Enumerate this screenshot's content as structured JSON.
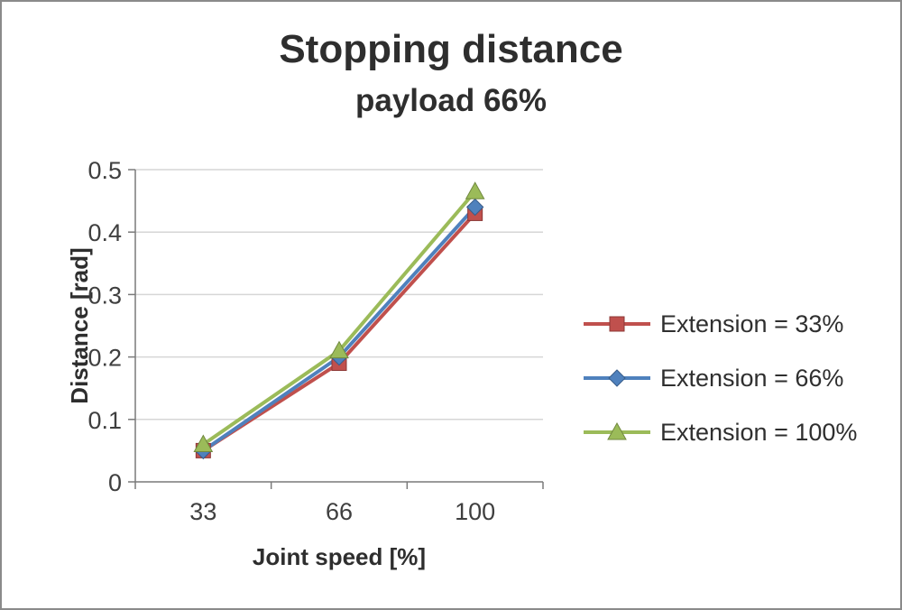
{
  "chart_data": {
    "type": "line",
    "title": "Stopping distance",
    "subtitle": "payload 66%",
    "xlabel": "Joint speed [%]",
    "ylabel": "Distance [rad]",
    "categories": [
      "33",
      "66",
      "100"
    ],
    "ylim": [
      0,
      0.5
    ],
    "yticks": [
      0,
      0.1,
      0.2,
      0.3,
      0.4,
      0.5
    ],
    "grid": true,
    "legend_position": "right",
    "series": [
      {
        "name": "Extension = 33%",
        "color": "#c0504d",
        "edge": "#8c3836",
        "marker": "square",
        "values": [
          0.05,
          0.19,
          0.43
        ]
      },
      {
        "name": "Extension = 66%",
        "color": "#4f81bd",
        "edge": "#385d8a",
        "marker": "diamond",
        "values": [
          0.05,
          0.2,
          0.44
        ]
      },
      {
        "name": "Extension = 100%",
        "color": "#9bbb59",
        "edge": "#71893f",
        "marker": "triangle",
        "values": [
          0.06,
          0.21,
          0.465
        ]
      }
    ]
  }
}
